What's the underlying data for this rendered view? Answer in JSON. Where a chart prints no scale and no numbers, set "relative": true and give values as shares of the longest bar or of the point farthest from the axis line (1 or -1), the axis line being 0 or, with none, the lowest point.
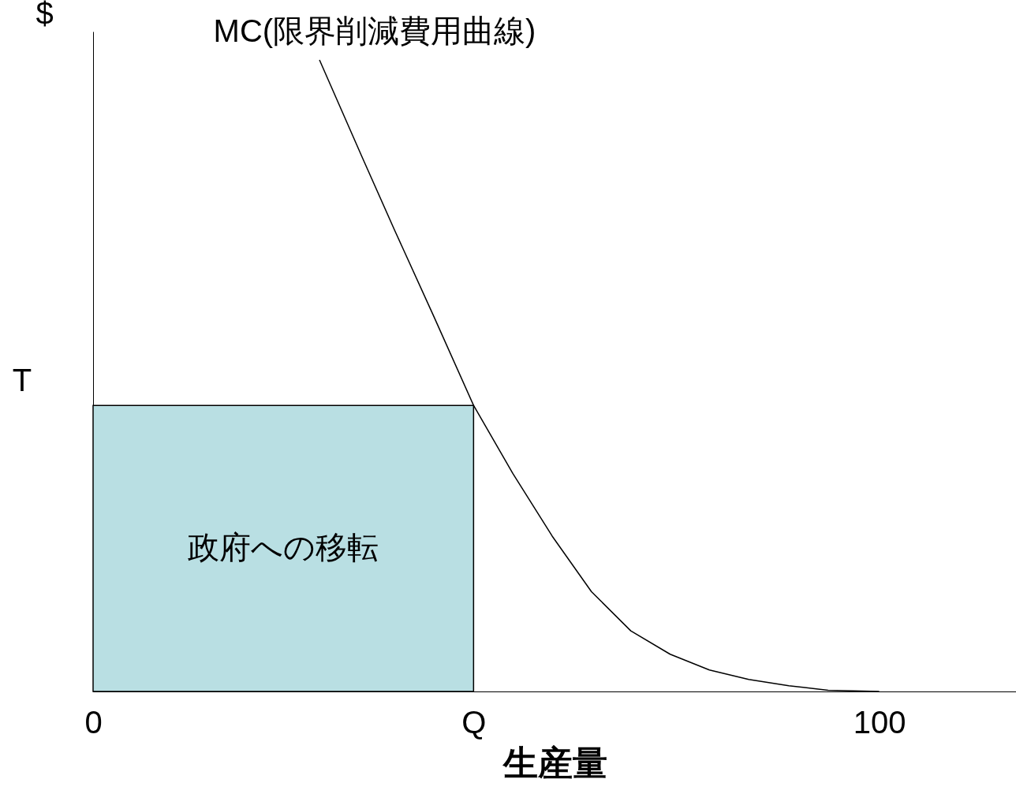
{
  "chart_data": {
    "type": "line",
    "relative": true,
    "ylabel": "$",
    "xlabel": "生産量",
    "xlim": [
      0,
      117.4
    ],
    "xticks": [
      0,
      {
        "value": 48.4,
        "label": "Q"
      },
      100
    ],
    "grid": false,
    "legend": false,
    "series": [
      {
        "type": "area",
        "color": "#b9dfe3",
        "x": [
          0,
          48.4
        ],
        "values": [
          0.453,
          0.453
        ]
      },
      {
        "name": "MC(限界削減費用曲線)",
        "color": "#000000",
        "x": [
          28.8,
          34.3,
          38.3,
          43.3,
          48.4,
          53.4,
          58.4,
          63.4,
          68.4,
          73.4,
          78.4,
          83.4,
          88.5,
          93.5,
          100
        ],
        "values": [
          1.0,
          0.844,
          0.732,
          0.595,
          0.453,
          0.345,
          0.246,
          0.158,
          0.096,
          0.059,
          0.034,
          0.019,
          0.009,
          0.002,
          0
        ]
      }
    ],
    "annotations": [
      "政府への移転",
      "T"
    ]
  }
}
